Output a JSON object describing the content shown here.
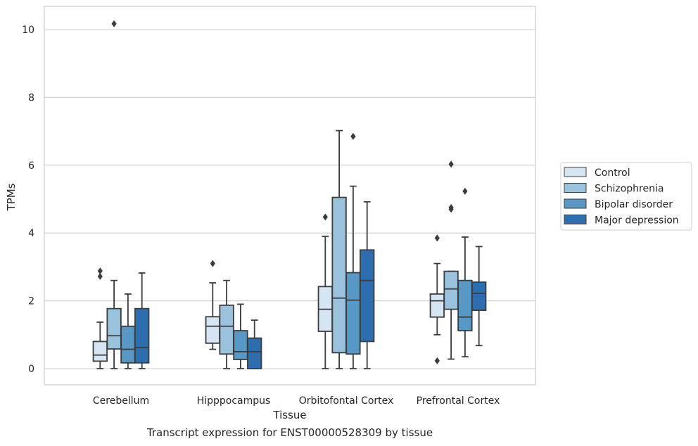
{
  "caption": "Transcript expression for ENST00000528309 by tissue",
  "chart_data": {
    "type": "boxplot",
    "xlabel": "Tissue",
    "ylabel": "TPMs",
    "ylim": [
      -0.5,
      10.7
    ],
    "yticks": [
      0,
      2,
      4,
      6,
      8,
      10
    ],
    "grid": "horizontal",
    "legend_position": "right",
    "categories": [
      "Cerebellum",
      "Hipppocampus",
      "Orbitofontal Cortex",
      "Prefrontal Cortex"
    ],
    "series": [
      {
        "name": "Control",
        "color": "#d6e5f3",
        "boxes": [
          {
            "whislo": 0.0,
            "q1": 0.22,
            "med": 0.4,
            "q3": 0.8,
            "whishi": 1.37,
            "fliers": [
              2.72,
              2.88
            ]
          },
          {
            "whislo": 0.57,
            "q1": 0.75,
            "med": 1.25,
            "q3": 1.53,
            "whishi": 2.53,
            "fliers": [
              3.1
            ]
          },
          {
            "whislo": 0.0,
            "q1": 1.1,
            "med": 1.75,
            "q3": 2.42,
            "whishi": 3.9,
            "fliers": [
              4.47
            ]
          },
          {
            "whislo": 1.0,
            "q1": 1.52,
            "med": 2.0,
            "q3": 2.2,
            "whishi": 3.1,
            "fliers": [
              0.23,
              3.85
            ]
          }
        ]
      },
      {
        "name": "Schizophrenia",
        "color": "#9ac2dc",
        "boxes": [
          {
            "whislo": 0.0,
            "q1": 0.58,
            "med": 0.97,
            "q3": 1.77,
            "whishi": 2.6,
            "fliers": [
              10.17
            ]
          },
          {
            "whislo": 0.0,
            "q1": 0.43,
            "med": 1.25,
            "q3": 1.87,
            "whishi": 2.6,
            "fliers": []
          },
          {
            "whislo": 0.0,
            "q1": 0.47,
            "med": 2.08,
            "q3": 5.05,
            "whishi": 7.02,
            "fliers": []
          },
          {
            "whislo": 0.28,
            "q1": 1.75,
            "med": 2.35,
            "q3": 2.87,
            "whishi": 2.87,
            "fliers": [
              4.7,
              4.75,
              6.03
            ]
          }
        ]
      },
      {
        "name": "Bipolar disorder",
        "color": "#5898c6",
        "boxes": [
          {
            "whislo": 0.0,
            "q1": 0.17,
            "med": 0.57,
            "q3": 1.25,
            "whishi": 2.2,
            "fliers": []
          },
          {
            "whislo": 0.0,
            "q1": 0.27,
            "med": 0.5,
            "q3": 1.12,
            "whishi": 1.9,
            "fliers": []
          },
          {
            "whislo": 0.0,
            "q1": 0.43,
            "med": 2.02,
            "q3": 2.83,
            "whishi": 5.38,
            "fliers": [
              6.85
            ]
          },
          {
            "whislo": 0.35,
            "q1": 1.12,
            "med": 1.52,
            "q3": 2.6,
            "whishi": 3.88,
            "fliers": [
              5.23
            ]
          }
        ]
      },
      {
        "name": "Major depression",
        "color": "#2d6eaf",
        "boxes": [
          {
            "whislo": 0.0,
            "q1": 0.17,
            "med": 0.62,
            "q3": 1.77,
            "whishi": 2.82,
            "fliers": []
          },
          {
            "whislo": 0.0,
            "q1": 0.0,
            "med": 0.5,
            "q3": 0.9,
            "whishi": 1.43,
            "fliers": []
          },
          {
            "whislo": 0.0,
            "q1": 0.8,
            "med": 2.6,
            "q3": 3.5,
            "whishi": 4.92,
            "fliers": []
          },
          {
            "whislo": 0.68,
            "q1": 1.72,
            "med": 2.22,
            "q3": 2.55,
            "whishi": 3.6,
            "fliers": []
          }
        ]
      }
    ]
  }
}
